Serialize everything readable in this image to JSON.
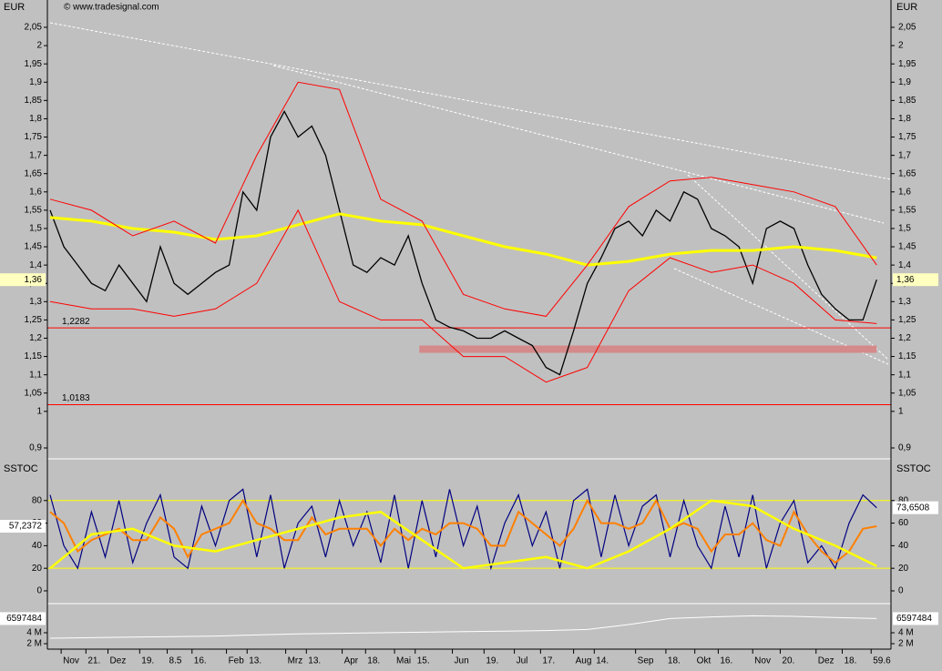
{
  "source": "© www.tradesignal.com",
  "chart_data": [
    {
      "type": "line",
      "title": "EUR",
      "xlim": [
        -0.2,
        61.04
      ],
      "xticks": [
        {
          "value": 0.8,
          "label": "Nov"
        },
        {
          "value": 2.6,
          "label": "21."
        },
        {
          "value": 4.2,
          "label": "Dez"
        },
        {
          "value": 6.5,
          "label": "19."
        },
        8.5,
        {
          "value": 10.3,
          "label": "16."
        },
        {
          "value": 12.8,
          "label": "Feb"
        },
        {
          "value": 14.3,
          "label": "13."
        },
        {
          "value": 17.1,
          "label": "Mrz"
        },
        {
          "value": 18.6,
          "label": "13."
        },
        {
          "value": 21.2,
          "label": "Apr"
        },
        {
          "value": 22.9,
          "label": "18."
        },
        {
          "value": 25.0,
          "label": "Mai"
        },
        {
          "value": 26.5,
          "label": "15."
        },
        {
          "value": 29.2,
          "label": "Jun"
        },
        {
          "value": 31.5,
          "label": "19."
        },
        {
          "value": 33.7,
          "label": "Jul"
        },
        {
          "value": 35.6,
          "label": "17."
        },
        {
          "value": 38.0,
          "label": "Aug"
        },
        {
          "value": 39.5,
          "label": "14."
        },
        {
          "value": 42.5,
          "label": "Sep"
        },
        {
          "value": 44.7,
          "label": "18."
        },
        {
          "value": 46.8,
          "label": "Okt"
        },
        {
          "value": 48.5,
          "label": "16."
        },
        {
          "value": 51.0,
          "label": "Nov"
        },
        {
          "value": 53.0,
          "label": "20."
        },
        {
          "value": 55.6,
          "label": "Dez"
        },
        {
          "value": 57.5,
          "label": "18."
        },
        59.6
      ],
      "ylim": [
        0.8726,
        2.1247
      ],
      "yticks": [
        {
          "value": 0.9,
          "label": "0,9"
        },
        1,
        {
          "value": 1.05,
          "label": "1,05"
        },
        {
          "value": 1.1,
          "label": "1,1"
        },
        {
          "value": 1.15,
          "label": "1,15"
        },
        {
          "value": 1.2,
          "label": "1,2"
        },
        {
          "value": 1.25,
          "label": "1,25"
        },
        {
          "value": 1.3,
          "label": "1,3"
        },
        {
          "value": 1.35,
          "label": "1,35"
        },
        {
          "value": 1.4,
          "label": "1,4"
        },
        {
          "value": 1.45,
          "label": "1,45"
        },
        {
          "value": 1.5,
          "label": "1,5"
        },
        {
          "value": 1.55,
          "label": "1,55"
        },
        {
          "value": 1.6,
          "label": "1,6"
        },
        {
          "value": 1.65,
          "label": "1,65"
        },
        {
          "value": 1.7,
          "label": "1,7"
        },
        {
          "value": 1.75,
          "label": "1,75"
        },
        {
          "value": 1.8,
          "label": "1,8"
        },
        {
          "value": 1.85,
          "label": "1,85"
        },
        {
          "value": 1.9,
          "label": "1,9"
        },
        {
          "value": 1.95,
          "label": "1,95"
        },
        2,
        {
          "value": 2.05,
          "label": "2,05"
        }
      ],
      "series": [
        {
          "color": "#000000",
          "width": 1.3,
          "x": [
            0,
            1,
            2,
            3,
            4,
            5,
            6,
            7,
            8,
            9,
            10,
            11,
            12,
            13,
            14,
            15,
            16,
            17,
            18,
            19,
            20,
            21,
            22,
            23,
            24,
            25,
            26,
            27,
            28,
            29,
            30,
            31,
            32,
            33,
            34,
            35,
            36,
            37,
            38,
            39,
            40,
            41,
            42,
            43,
            44,
            45,
            46,
            47,
            48,
            49,
            50,
            51,
            52,
            53,
            54,
            55,
            56,
            57,
            58,
            59,
            60
          ],
          "values": [
            1.55,
            1.45,
            1.4,
            1.35,
            1.33,
            1.4,
            1.35,
            1.3,
            1.45,
            1.35,
            1.32,
            1.35,
            1.38,
            1.4,
            1.6,
            1.55,
            1.75,
            1.82,
            1.75,
            1.78,
            1.7,
            1.55,
            1.4,
            1.38,
            1.42,
            1.4,
            1.48,
            1.35,
            1.25,
            1.23,
            1.22,
            1.2,
            1.2,
            1.22,
            1.2,
            1.18,
            1.12,
            1.1,
            1.22,
            1.35,
            1.42,
            1.5,
            1.52,
            1.48,
            1.55,
            1.52,
            1.6,
            1.58,
            1.5,
            1.48,
            1.45,
            1.35,
            1.5,
            1.52,
            1.5,
            1.4,
            1.32,
            1.28,
            1.25,
            1.25,
            1.36
          ]
        },
        {
          "color": "#ffff00",
          "width": 3,
          "x": [
            0,
            3,
            6,
            9,
            12,
            15,
            18,
            21,
            24,
            27,
            30,
            33,
            36,
            39,
            42,
            45,
            48,
            51,
            54,
            57,
            60
          ],
          "values": [
            1.53,
            1.52,
            1.5,
            1.49,
            1.47,
            1.48,
            1.51,
            1.54,
            1.52,
            1.51,
            1.48,
            1.45,
            1.43,
            1.4,
            1.41,
            1.43,
            1.44,
            1.44,
            1.45,
            1.44,
            1.42
          ]
        },
        {
          "color": "#ff0000",
          "width": 1,
          "x": [
            0,
            3,
            6,
            9,
            12,
            15,
            18,
            21,
            24,
            27,
            30,
            33,
            36,
            39,
            42,
            45,
            48,
            51,
            54,
            57,
            60
          ],
          "values": [
            1.58,
            1.55,
            1.48,
            1.52,
            1.46,
            1.7,
            1.9,
            1.88,
            1.58,
            1.52,
            1.32,
            1.28,
            1.26,
            1.4,
            1.56,
            1.63,
            1.64,
            1.62,
            1.6,
            1.56,
            1.4
          ]
        },
        {
          "color": "#ff0000",
          "width": 1,
          "x": [
            0,
            3,
            6,
            9,
            12,
            15,
            18,
            21,
            24,
            27,
            30,
            33,
            36,
            39,
            42,
            45,
            48,
            51,
            54,
            57,
            60
          ],
          "values": [
            1.3,
            1.28,
            1.28,
            1.26,
            1.28,
            1.35,
            1.55,
            1.3,
            1.25,
            1.25,
            1.15,
            1.15,
            1.08,
            1.12,
            1.33,
            1.42,
            1.38,
            1.4,
            1.35,
            1.25,
            1.24
          ]
        }
      ],
      "lines": [
        {
          "value": 1.2282,
          "label": "1,2282",
          "color": "#ff0000"
        },
        {
          "value": 1.0183,
          "label": "1,0183",
          "color": "#ff0000"
        }
      ],
      "zone": {
        "x": [
          26.8,
          60
        ],
        "y": [
          1.16,
          1.18
        ],
        "color": "#d48a8a"
      },
      "last": {
        "value": 1.36,
        "label": "1,36"
      }
    },
    {
      "type": "line",
      "title": "SSTOC",
      "xlim": [
        -0.2,
        61.04
      ],
      "ylim": [
        -10.5,
        114.5
      ],
      "yticks": [
        0,
        20,
        40,
        60,
        80
      ],
      "levels": [
        20,
        80
      ],
      "level_color": "#ffff00",
      "series": [
        {
          "color": "#000080",
          "width": 1.2,
          "x": [
            0,
            1,
            2,
            3,
            4,
            5,
            6,
            7,
            8,
            9,
            10,
            11,
            12,
            13,
            14,
            15,
            16,
            17,
            18,
            19,
            20,
            21,
            22,
            23,
            24,
            25,
            26,
            27,
            28,
            29,
            30,
            31,
            32,
            33,
            34,
            35,
            36,
            37,
            38,
            39,
            40,
            41,
            42,
            43,
            44,
            45,
            46,
            47,
            48,
            49,
            50,
            51,
            52,
            53,
            54,
            55,
            56,
            57,
            58,
            59,
            60
          ],
          "values": [
            85,
            40,
            20,
            70,
            30,
            80,
            25,
            60,
            85,
            30,
            20,
            75,
            40,
            80,
            90,
            30,
            85,
            20,
            60,
            75,
            30,
            80,
            40,
            70,
            25,
            85,
            20,
            80,
            30,
            90,
            40,
            75,
            20,
            60,
            85,
            40,
            70,
            20,
            80,
            90,
            30,
            85,
            40,
            75,
            85,
            30,
            80,
            40,
            20,
            75,
            30,
            85,
            20,
            60,
            80,
            25,
            40,
            20,
            60,
            85,
            73.6508
          ]
        },
        {
          "color": "#ff8000",
          "width": 2,
          "x": [
            0,
            1,
            2,
            3,
            4,
            5,
            6,
            7,
            8,
            9,
            10,
            11,
            12,
            13,
            14,
            15,
            16,
            17,
            18,
            19,
            20,
            21,
            22,
            23,
            24,
            25,
            26,
            27,
            28,
            29,
            30,
            31,
            32,
            33,
            34,
            35,
            36,
            37,
            38,
            39,
            40,
            41,
            42,
            43,
            44,
            45,
            46,
            47,
            48,
            49,
            50,
            51,
            52,
            53,
            54,
            55,
            56,
            57,
            58,
            59,
            60
          ],
          "values": [
            70,
            60,
            35,
            45,
            50,
            55,
            45,
            45,
            65,
            55,
            30,
            50,
            55,
            60,
            80,
            60,
            55,
            45,
            45,
            65,
            50,
            55,
            55,
            55,
            40,
            55,
            45,
            55,
            50,
            60,
            60,
            55,
            40,
            40,
            70,
            60,
            50,
            40,
            55,
            80,
            60,
            60,
            55,
            60,
            80,
            55,
            60,
            55,
            35,
            50,
            50,
            60,
            45,
            40,
            70,
            50,
            35,
            25,
            35,
            55,
            57.2372
          ]
        },
        {
          "color": "#ffff00",
          "width": 2.5,
          "x": [
            0,
            3,
            6,
            9,
            12,
            15,
            18,
            21,
            24,
            27,
            30,
            33,
            36,
            39,
            42,
            45,
            48,
            51,
            54,
            57,
            60
          ],
          "values": [
            20,
            50,
            55,
            40,
            35,
            45,
            55,
            65,
            70,
            45,
            20,
            25,
            30,
            20,
            35,
            55,
            80,
            75,
            55,
            40,
            22
          ]
        }
      ],
      "last_left": {
        "value": 57.2372,
        "label": "57,2372"
      },
      "last_right": {
        "value": 73.6508,
        "label": "73,6508"
      }
    },
    {
      "type": "line",
      "xlim": [
        -0.2,
        61.04
      ],
      "ylim": [
        1166667,
        9000000
      ],
      "yticks": [
        {
          "value": 2000000,
          "label": "2 M"
        },
        {
          "value": 4000000,
          "label": "4 M"
        }
      ],
      "series": [
        {
          "color": "#ffffff",
          "width": 1,
          "x": [
            0,
            3,
            6,
            9,
            12,
            15,
            18,
            21,
            24,
            27,
            30,
            33,
            36,
            39,
            42,
            45,
            48,
            51,
            54,
            57,
            60
          ],
          "values": [
            3000000,
            3100000,
            3200000,
            3300000,
            3400000,
            3600000,
            3800000,
            3900000,
            4000000,
            4100000,
            4200000,
            4300000,
            4400000,
            4600000,
            5500000,
            6600000,
            6900000,
            7100000,
            7000000,
            6800000,
            6597484
          ]
        }
      ],
      "last": {
        "value": 6597484,
        "label": "6597484"
      }
    }
  ]
}
